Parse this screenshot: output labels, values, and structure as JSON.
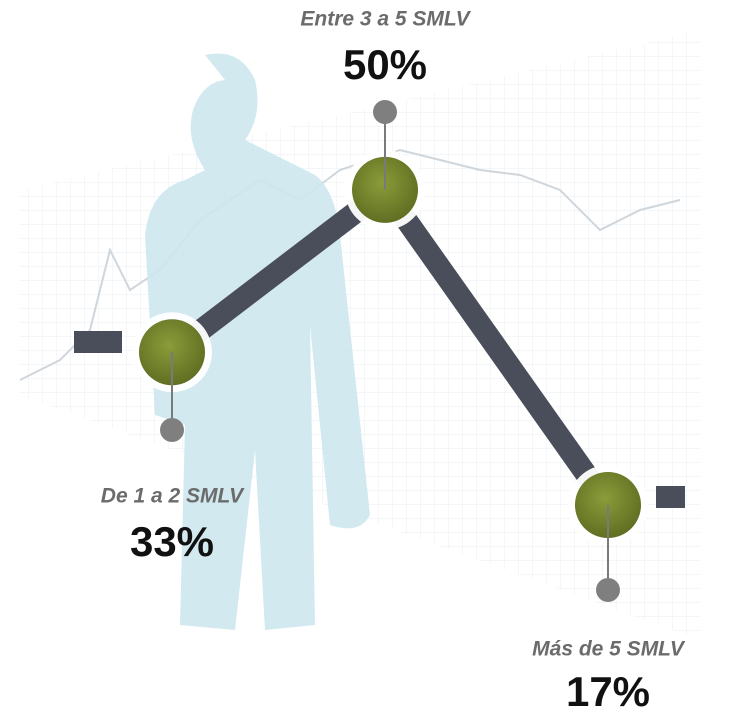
{
  "chart_data": {
    "type": "line",
    "categories": [
      "De 1 a 2 SMLV",
      "Entre 3 a 5 SMLV",
      "Más de 5 SMLV"
    ],
    "values": [
      33,
      50,
      17
    ],
    "value_labels": [
      "33%",
      "50%",
      "17%"
    ],
    "color": "#4a4e5a"
  }
}
